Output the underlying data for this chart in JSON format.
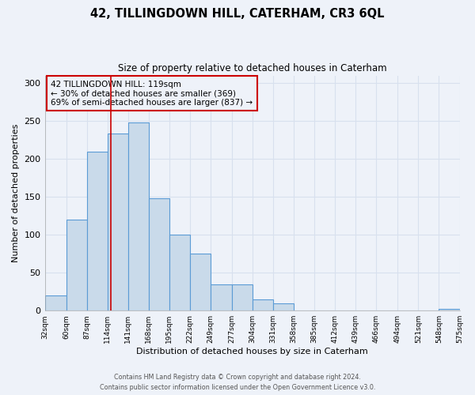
{
  "title": "42, TILLINGDOWN HILL, CATERHAM, CR3 6QL",
  "subtitle": "Size of property relative to detached houses in Caterham",
  "xlabel": "Distribution of detached houses by size in Caterham",
  "ylabel": "Number of detached properties",
  "bar_heights": [
    20,
    120,
    210,
    233,
    248,
    148,
    100,
    75,
    35,
    35,
    15,
    10,
    0,
    0,
    0,
    0,
    0,
    0,
    0,
    2
  ],
  "bin_edges": [
    32,
    60,
    87,
    114,
    141,
    168,
    195,
    222,
    249,
    277,
    304,
    331,
    358,
    385,
    412,
    439,
    466,
    494,
    521,
    548,
    575
  ],
  "tick_labels": [
    "32sqm",
    "60sqm",
    "87sqm",
    "114sqm",
    "141sqm",
    "168sqm",
    "195sqm",
    "222sqm",
    "249sqm",
    "277sqm",
    "304sqm",
    "331sqm",
    "358sqm",
    "385sqm",
    "412sqm",
    "439sqm",
    "466sqm",
    "494sqm",
    "521sqm",
    "548sqm",
    "575sqm"
  ],
  "bar_color": "#c9daea",
  "bar_edge_color": "#5b9bd5",
  "vline_x": 119,
  "vline_color": "#cc0000",
  "annotation_title": "42 TILLINGDOWN HILL: 119sqm",
  "annotation_line1": "← 30% of detached houses are smaller (369)",
  "annotation_line2": "69% of semi-detached houses are larger (837) →",
  "annotation_box_edge": "#cc0000",
  "ylim": [
    0,
    310
  ],
  "footnote1": "Contains HM Land Registry data © Crown copyright and database right 2024.",
  "footnote2": "Contains public sector information licensed under the Open Government Licence v3.0.",
  "background_color": "#eef2f9",
  "grid_color": "#d8e0ee"
}
